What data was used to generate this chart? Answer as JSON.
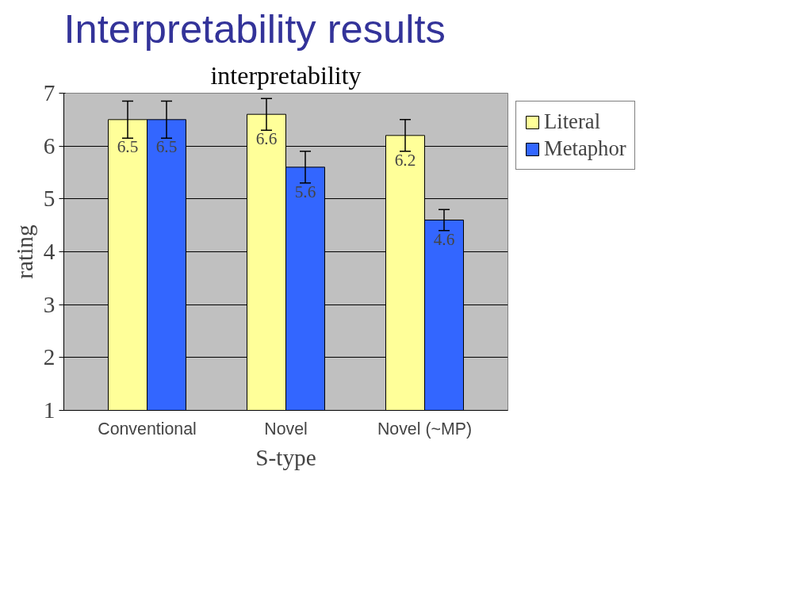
{
  "chart_data": {
    "type": "bar",
    "title": "Interpretability results",
    "subtitle": "interpretability",
    "xlabel": "S-type",
    "ylabel": "rating",
    "categories": [
      "Conventional",
      "Novel",
      "Novel (~MP)"
    ],
    "series": [
      {
        "name": "Literal",
        "color": "#ffff99",
        "values": [
          6.5,
          6.6,
          6.2
        ],
        "errors": [
          0.35,
          0.3,
          0.3
        ]
      },
      {
        "name": "Metaphor",
        "color": "#3366ff",
        "values": [
          6.5,
          5.6,
          4.6
        ],
        "errors": [
          0.35,
          0.3,
          0.2
        ]
      }
    ],
    "ylim": [
      1,
      7
    ],
    "yticks": [
      1,
      2,
      3,
      4,
      5,
      6,
      7
    ],
    "grid": "y",
    "legend": "right",
    "data_labels": true
  }
}
